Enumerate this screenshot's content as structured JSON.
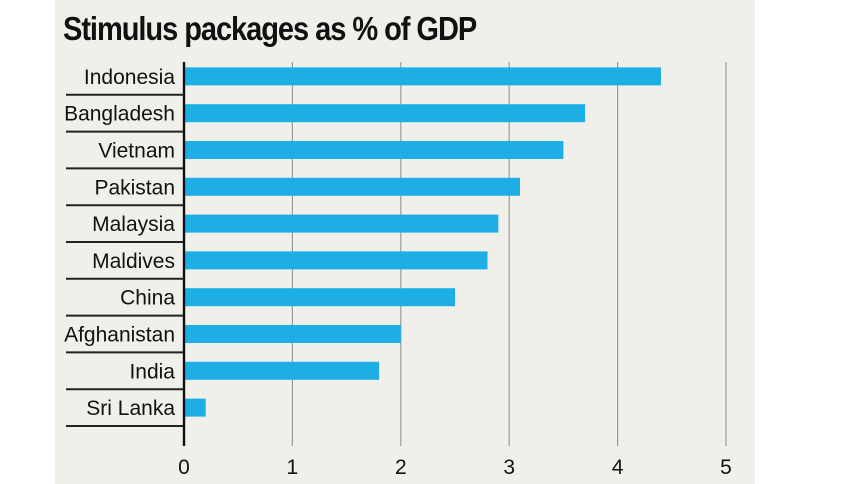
{
  "chart_data": {
    "type": "bar",
    "orientation": "horizontal",
    "title": "Stimulus packages as % of GDP",
    "categories": [
      "Indonesia",
      "Bangladesh",
      "Vietnam",
      "Pakistan",
      "Malaysia",
      "Maldives",
      "China",
      "Afghanistan",
      "India",
      "Sri Lanka"
    ],
    "values": [
      4.4,
      3.7,
      3.5,
      3.1,
      2.9,
      2.8,
      2.5,
      2.0,
      1.8,
      0.2
    ],
    "xticks": [
      "0",
      "1",
      "2",
      "3",
      "4",
      "5"
    ],
    "xlim": [
      0,
      5
    ],
    "grid": true,
    "colors": {
      "bar": "#1eaee6",
      "background": "#f1efea",
      "text": "#111111",
      "grid": "#9a9a9a"
    }
  }
}
